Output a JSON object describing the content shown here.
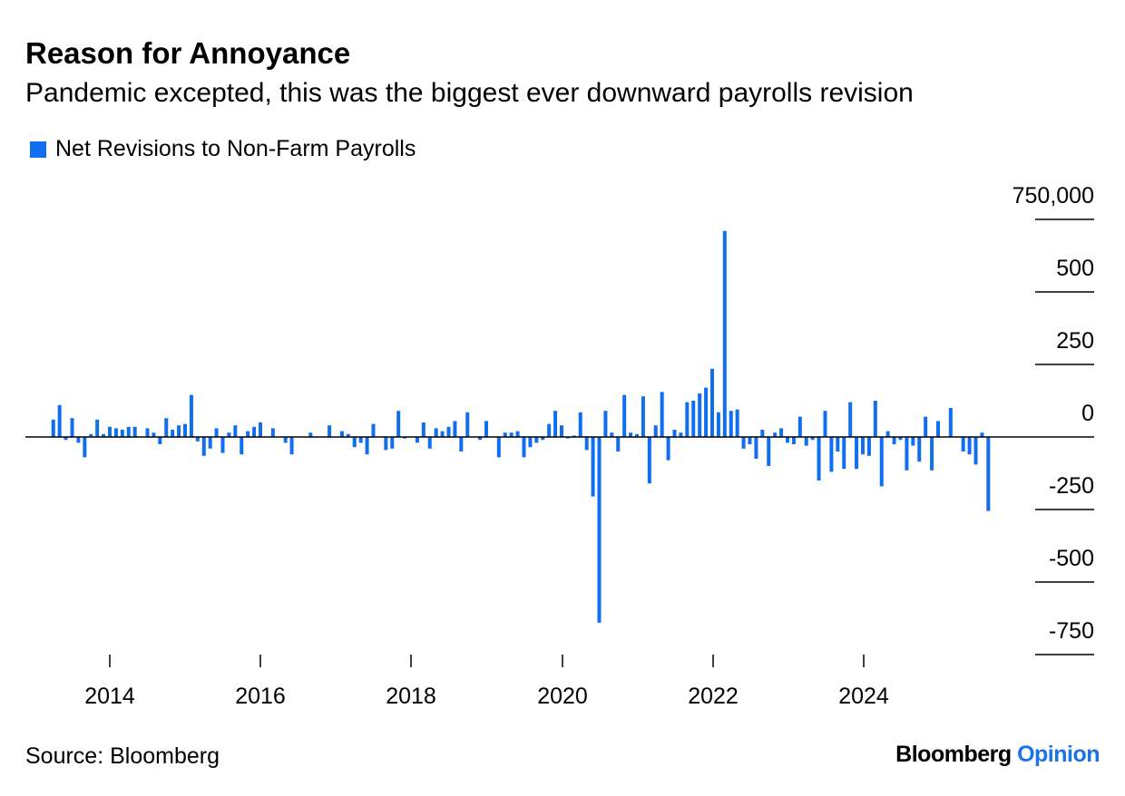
{
  "title": "Reason for Annoyance",
  "subtitle": "Pandemic excepted, this was the biggest ever downward payrolls revision",
  "source": "Source: Bloomberg",
  "brand": {
    "part1": "Bloomberg",
    "part2": "Opinion"
  },
  "colors": {
    "bar": "#0f6ff0",
    "axis": "#000000",
    "brand_accent": "#1a73e8"
  },
  "chart_data": {
    "type": "bar",
    "legend": [
      "Net Revisions to Non-Farm Payrolls"
    ],
    "legend_position": "top-left",
    "grid": false,
    "x_start": "2013-04",
    "x_frequency": "monthly",
    "x_tick_labels": [
      "2014",
      "2016",
      "2018",
      "2020",
      "2022",
      "2024"
    ],
    "y_tick_labels": [
      "750,000",
      "500",
      "250",
      "0",
      "-250",
      "-500",
      "-750"
    ],
    "ylim": [
      -750000,
      750000
    ],
    "series": [
      {
        "name": "Net Revisions to Non-Farm Payrolls",
        "values": [
          60000,
          110000,
          -10000,
          65000,
          -20000,
          -70000,
          10000,
          60000,
          10000,
          35000,
          30000,
          25000,
          35000,
          35000,
          0,
          30000,
          15000,
          -25000,
          65000,
          25000,
          40000,
          45000,
          145000,
          -15000,
          -65000,
          -40000,
          30000,
          -55000,
          15000,
          40000,
          -60000,
          20000,
          35000,
          50000,
          0,
          30000,
          0,
          -20000,
          -60000,
          0,
          0,
          15000,
          0,
          0,
          40000,
          0,
          20000,
          10000,
          -35000,
          -20000,
          -60000,
          45000,
          0,
          -45000,
          -40000,
          90000,
          -5000,
          0,
          -20000,
          50000,
          -40000,
          30000,
          20000,
          35000,
          55000,
          -50000,
          85000,
          0,
          -10000,
          55000,
          0,
          -70000,
          15000,
          15000,
          20000,
          -70000,
          -35000,
          -20000,
          -10000,
          45000,
          90000,
          40000,
          -5000,
          5000,
          85000,
          -45000,
          -205000,
          -640000,
          90000,
          15000,
          -50000,
          145000,
          15000,
          10000,
          140000,
          -160000,
          40000,
          155000,
          -80000,
          25000,
          15000,
          120000,
          125000,
          150000,
          170000,
          235000,
          85000,
          710000,
          90000,
          95000,
          -40000,
          -25000,
          -75000,
          25000,
          -100000,
          15000,
          30000,
          -20000,
          -25000,
          70000,
          -30000,
          -10000,
          -150000,
          90000,
          -120000,
          -50000,
          -110000,
          120000,
          -110000,
          -60000,
          -65000,
          125000,
          -170000,
          20000,
          -25000,
          -10000,
          -115000,
          -30000,
          -85000,
          70000,
          -115000,
          55000,
          0,
          100000,
          0,
          -50000,
          -60000,
          -95000,
          15000,
          -255000
        ]
      }
    ]
  }
}
